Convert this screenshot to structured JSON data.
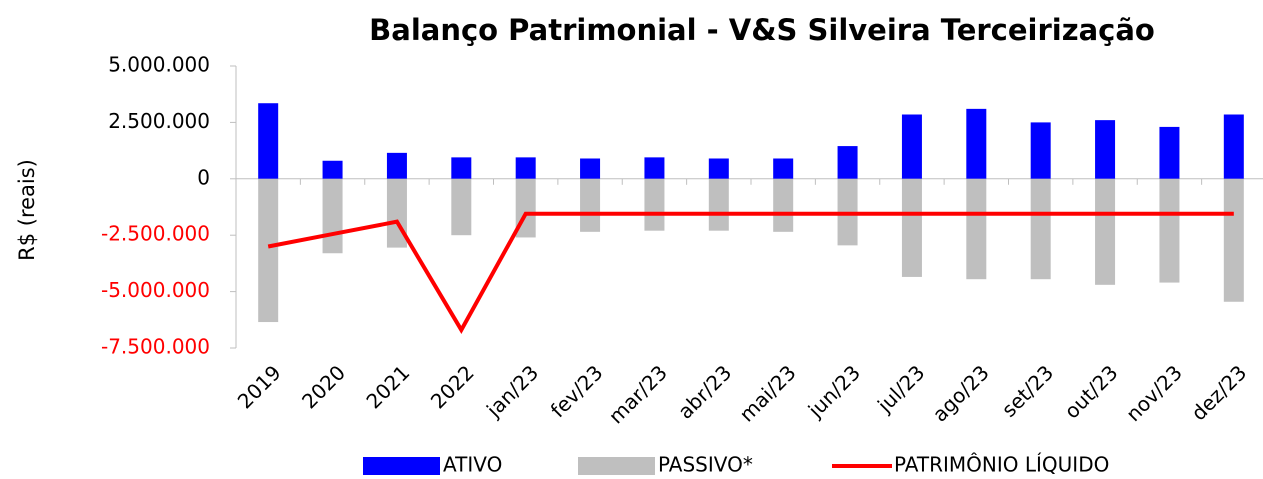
{
  "chart_data": {
    "type": "bar_line",
    "title": "Balanço Patrimonial - V&S Silveira Terceirização",
    "y_label": "R$ (reais)",
    "categories": [
      "2019",
      "2020",
      "2021",
      "2022",
      "jan/23",
      "fev/23",
      "mar/23",
      "abr/23",
      "mai/23",
      "jun/23",
      "jul/23",
      "ago/23",
      "set/23",
      "out/23",
      "nov/23",
      "dez/23"
    ],
    "series": [
      {
        "name": "ATIVO",
        "type": "bar",
        "color": "#0000ff",
        "values": [
          3350000,
          800000,
          1150000,
          950000,
          950000,
          900000,
          950000,
          900000,
          900000,
          1450000,
          2850000,
          3100000,
          2500000,
          2600000,
          2300000,
          2850000
        ]
      },
      {
        "name": "PASSIVO*",
        "type": "bar",
        "color": "#bfbfbf",
        "values": [
          -6350000,
          -3300000,
          -3050000,
          -2500000,
          -2600000,
          -2350000,
          -2300000,
          -2300000,
          -2350000,
          -2950000,
          -4350000,
          -4450000,
          -4450000,
          -4700000,
          -4600000,
          -5450000
        ]
      },
      {
        "name": "PATRIMÔNIO LÍQUIDO",
        "type": "line",
        "color": "#ff0000",
        "values": [
          -3000000,
          -2450000,
          -1900000,
          -6700000,
          -1550000,
          -1550000,
          -1550000,
          -1550000,
          -1550000,
          -1550000,
          -1550000,
          -1550000,
          -1550000,
          -1550000,
          -1550000,
          -1550000
        ]
      }
    ],
    "ylim": [
      -7500000,
      5000000
    ],
    "yticks": [
      {
        "value": -7500000,
        "label": "-7.500.000"
      },
      {
        "value": -5000000,
        "label": "-5.000.000"
      },
      {
        "value": -2500000,
        "label": "-2.500.000"
      },
      0,
      {
        "value": 2500000,
        "label": "2.500.000"
      },
      {
        "value": 5000000,
        "label": "5.000.000"
      }
    ],
    "negative_tick_color": "#ff0000",
    "legend": "bottom"
  }
}
